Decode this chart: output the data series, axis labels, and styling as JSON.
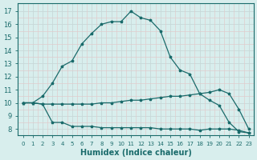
{
  "line1_x": [
    0,
    1,
    2,
    3,
    4,
    5,
    6,
    7,
    8,
    9,
    10,
    11,
    12,
    13,
    14,
    15,
    16,
    17,
    18,
    19,
    20,
    21,
    22,
    23
  ],
  "line1_y": [
    10,
    10,
    10.5,
    11.5,
    12.8,
    13.2,
    14.5,
    15.3,
    16.0,
    16.2,
    16.2,
    17.0,
    16.5,
    16.3,
    15.5,
    13.5,
    12.5,
    12.2,
    10.7,
    10.2,
    9.8,
    8.5,
    7.8,
    7.7
  ],
  "line2_x": [
    0,
    1,
    2,
    3,
    4,
    5,
    6,
    7,
    8,
    9,
    10,
    11,
    12,
    13,
    14,
    15,
    16,
    17,
    18,
    19,
    20,
    21,
    22,
    23
  ],
  "line2_y": [
    10,
    10,
    9.9,
    9.9,
    9.9,
    9.9,
    9.9,
    9.9,
    10.0,
    10.0,
    10.1,
    10.2,
    10.2,
    10.3,
    10.4,
    10.5,
    10.5,
    10.6,
    10.7,
    10.8,
    11.0,
    10.7,
    9.5,
    8.0
  ],
  "line3_x": [
    0,
    1,
    2,
    3,
    4,
    5,
    6,
    7,
    8,
    9,
    10,
    11,
    12,
    13,
    14,
    15,
    16,
    17,
    18,
    19,
    20,
    21,
    22,
    23
  ],
  "line3_y": [
    10,
    10,
    9.9,
    8.5,
    8.5,
    8.2,
    8.2,
    8.2,
    8.1,
    8.1,
    8.1,
    8.1,
    8.1,
    8.1,
    8.0,
    8.0,
    8.0,
    8.0,
    7.9,
    8.0,
    8.0,
    8.0,
    7.9,
    7.7
  ],
  "line_color": "#1a6b6b",
  "bg_color": "#d8eeed",
  "grid_color_major": "#c0d0d0",
  "grid_color_minor": "#dae8e8",
  "xlabel": "Humidex (Indice chaleur)",
  "yticks": [
    8,
    9,
    10,
    11,
    12,
    13,
    14,
    15,
    16,
    17
  ],
  "xtick_labels": [
    "0",
    "1",
    "2",
    "3",
    "4",
    "5",
    "6",
    "7",
    "8",
    "9",
    "10",
    "11",
    "12",
    "13",
    "14",
    "15",
    "16",
    "17",
    "18",
    "19",
    "20",
    "21",
    "22",
    "23"
  ],
  "ylim": [
    7.5,
    17.6
  ],
  "xlim": [
    -0.5,
    23.5
  ]
}
